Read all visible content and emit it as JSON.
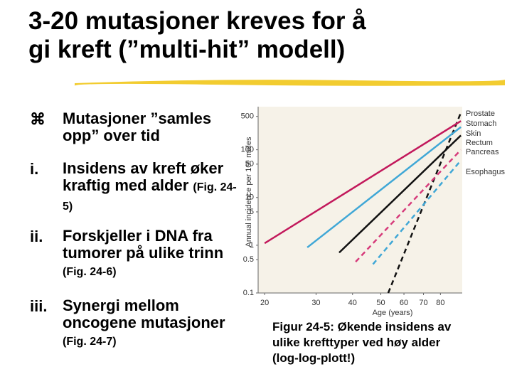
{
  "slide": {
    "title_lines": [
      "3-20 mutasjoner kreves for å",
      "gi kreft (”multi-hit” modell)"
    ],
    "bullets": [
      {
        "marker": "⌘",
        "text": "Mutasjoner ”samles opp” over tid"
      },
      {
        "marker": "i.",
        "text": "Insidens av kreft øker kraftig med alder",
        "ref": "(Fig. 24-5)"
      },
      {
        "marker": "ii.",
        "text": "Forskjeller i DNA fra tumorer på ulike trinn",
        "ref": "(Fig. 24-6)"
      },
      {
        "marker": "iii.",
        "text": "Synergi mellom oncogene mutasjoner",
        "ref": "(Fig. 24-7)"
      }
    ],
    "caption_lines": [
      "Figur 24-5: Økende insidens av",
      "ulike krefttyper ved høy alder",
      "(log-log-plott!)"
    ]
  },
  "chart_data": {
    "type": "line",
    "x_label": "Age (years)",
    "y_label": "Annual incidence per 10⁵ males",
    "xscale": "log",
    "yscale": "log",
    "grid": false,
    "xlim": [
      19,
      95
    ],
    "xticks": [
      20,
      30,
      40,
      50,
      60,
      70,
      80
    ],
    "ylim": [
      0.1,
      800
    ],
    "yticks": [
      0.1,
      0.5,
      1,
      5,
      10,
      50,
      100,
      500
    ],
    "series": [
      {
        "name": "Prostate",
        "color": "#111111",
        "dash": true,
        "x": [
          53,
          94
        ],
        "values": [
          0.1,
          600
        ]
      },
      {
        "name": "Stomach",
        "color": "#c2185b",
        "dash": false,
        "x": [
          20,
          94
        ],
        "values": [
          1.1,
          400
        ]
      },
      {
        "name": "Skin",
        "color": "#3fa7d6",
        "dash": false,
        "x": [
          28,
          94
        ],
        "values": [
          0.9,
          300
        ]
      },
      {
        "name": "Rectum",
        "color": "#111111",
        "dash": false,
        "x": [
          36,
          94
        ],
        "values": [
          0.7,
          200
        ]
      },
      {
        "name": "Pancreas",
        "color": "#d63a7a",
        "dash": true,
        "x": [
          41,
          94
        ],
        "values": [
          0.45,
          100
        ]
      },
      {
        "name": "Esophagus",
        "color": "#3fa7d6",
        "dash": true,
        "x": [
          47,
          94
        ],
        "values": [
          0.4,
          60
        ]
      }
    ]
  }
}
